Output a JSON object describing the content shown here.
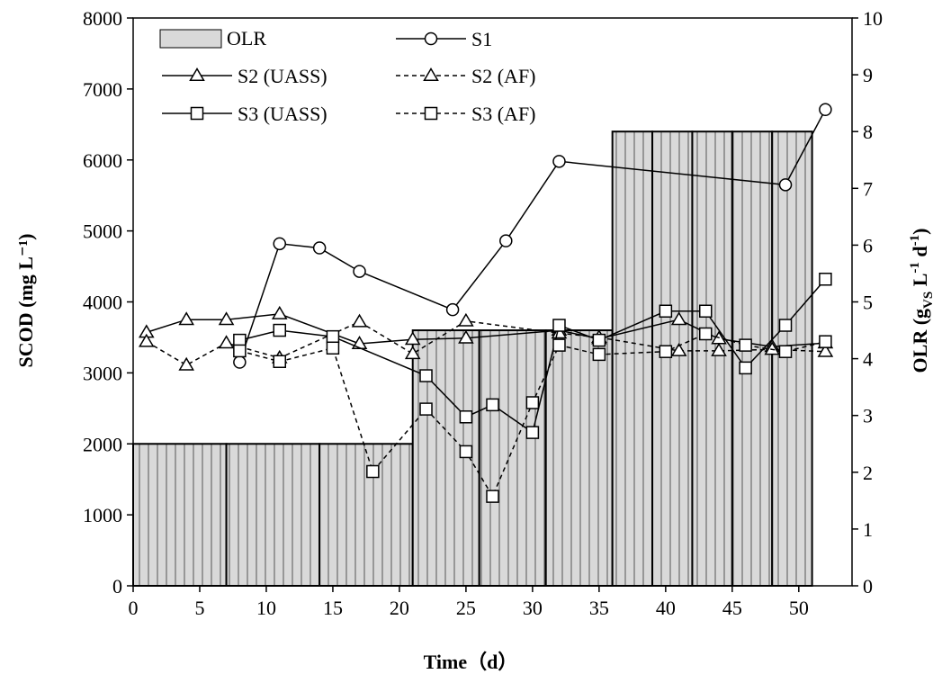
{
  "chart_data": {
    "type": "bar+line",
    "xlabel": "Time（d）",
    "ylabel_left": "SCOD (mg L⁻¹)",
    "ylabel_right_parts": {
      "main": "OLR (g",
      "sub": "VS",
      "mid": " L",
      "sup1": "-1",
      "mid2": " d",
      "sup2": "-1",
      "end": ")"
    },
    "xlim": [
      0,
      54
    ],
    "xticks": [
      0,
      5,
      10,
      15,
      20,
      25,
      30,
      35,
      40,
      45,
      50
    ],
    "ylim_left": [
      0,
      8000
    ],
    "yticks_left": [
      0,
      1000,
      2000,
      3000,
      4000,
      5000,
      6000,
      7000,
      8000
    ],
    "ylim_right": [
      0,
      10
    ],
    "yticks_right": [
      0,
      1,
      2,
      3,
      4,
      5,
      6,
      7,
      8,
      9,
      10
    ],
    "legend_position": "top-left",
    "olr": {
      "name": "OLR",
      "color": "#d9d9d9",
      "edge_color": "#000000",
      "segments": [
        {
          "x0": 0,
          "x1": 7,
          "value": 2.5
        },
        {
          "x0": 7,
          "x1": 14,
          "value": 2.5
        },
        {
          "x0": 14,
          "x1": 21,
          "value": 2.5
        },
        {
          "x0": 21,
          "x1": 26,
          "value": 4.5
        },
        {
          "x0": 26,
          "x1": 31,
          "value": 4.5
        },
        {
          "x0": 31,
          "x1": 36,
          "value": 4.5
        },
        {
          "x0": 36,
          "x1": 39,
          "value": 8
        },
        {
          "x0": 39,
          "x1": 42,
          "value": 8
        },
        {
          "x0": 42,
          "x1": 45,
          "value": 8
        },
        {
          "x0": 45,
          "x1": 48,
          "value": 8
        },
        {
          "x0": 48,
          "x1": 51,
          "value": 8
        }
      ]
    },
    "series": [
      {
        "name": "S1",
        "marker": "circle",
        "dash": "solid",
        "x": [
          8,
          11,
          14,
          17,
          24,
          28,
          32,
          49,
          52
        ],
        "y": [
          3150,
          4820,
          4760,
          4430,
          3890,
          4860,
          5980,
          5650,
          6710
        ]
      },
      {
        "name": "S2 (UASS)",
        "marker": "triangle",
        "dash": "solid",
        "x": [
          1,
          4,
          7,
          11,
          17,
          21,
          25,
          32,
          35,
          41,
          44,
          48,
          52
        ],
        "y": [
          3570,
          3750,
          3750,
          3830,
          3410,
          3470,
          3490,
          3600,
          3480,
          3750,
          3480,
          3370,
          3420
        ]
      },
      {
        "name": "S2 (AF)",
        "marker": "triangle",
        "dash": "dashed",
        "x": [
          1,
          4,
          7,
          11,
          17,
          21,
          25,
          32,
          35,
          41,
          44,
          48,
          52
        ],
        "y": [
          3440,
          3110,
          3420,
          3210,
          3720,
          3270,
          3730,
          3560,
          3500,
          3310,
          3310,
          3330,
          3300
        ]
      },
      {
        "name": "S3 (UASS)",
        "marker": "square",
        "dash": "solid",
        "x": [
          8,
          11,
          15,
          22,
          25,
          27,
          30,
          32,
          35,
          40,
          43,
          46,
          49,
          52
        ],
        "y": [
          3460,
          3600,
          3510,
          2960,
          2380,
          2550,
          2160,
          3670,
          3460,
          3870,
          3870,
          3070,
          3670,
          4320
        ]
      },
      {
        "name": "S3 (AF)",
        "marker": "square",
        "dash": "dashed",
        "x": [
          8,
          11,
          15,
          18,
          22,
          25,
          27,
          30,
          32,
          35,
          40,
          43,
          46,
          49,
          52
        ],
        "y": [
          3310,
          3160,
          3350,
          1610,
          2490,
          1890,
          1260,
          2580,
          3390,
          3260,
          3300,
          3550,
          3390,
          3300,
          3440
        ]
      }
    ]
  }
}
